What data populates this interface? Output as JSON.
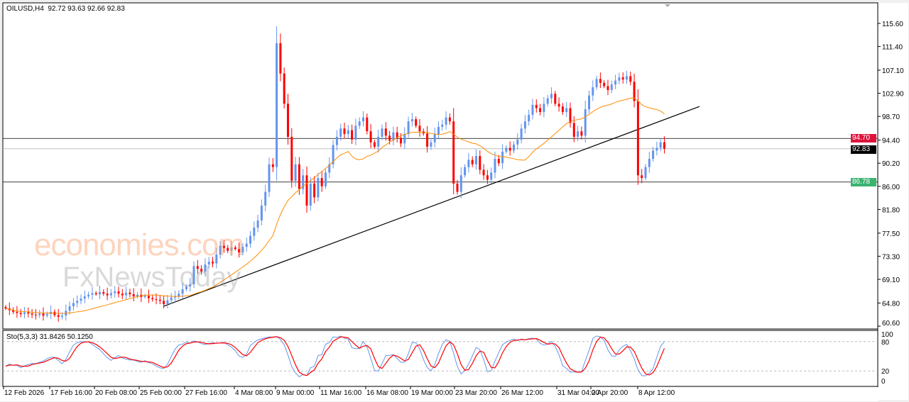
{
  "header": {
    "symbol": "OILUSD,H4",
    "ohlc": "92.72 93.63 92.66 92.83"
  },
  "indicator": {
    "label": "Sto(5,3,3) 31.8426 50.1250",
    "levels": [
      "100",
      "80",
      "20",
      "0"
    ]
  },
  "watermark": {
    "line1": "economies.com",
    "line2": "FxNewsToday"
  },
  "price_tags": {
    "resistance": {
      "value": "94.70",
      "color": "#DC143C"
    },
    "current": {
      "value": "92.83",
      "color": "#000000"
    },
    "support": {
      "value": "86.78",
      "color": "#3CB371"
    }
  },
  "colors": {
    "bull": "#6495ED",
    "bear": "#FF0000",
    "ma": "#FF8C00",
    "stoch_main": "#6495ED",
    "stoch_signal": "#FF0000"
  },
  "chart_data": {
    "type": "candlestick",
    "symbol": "OILUSD",
    "timeframe": "H4",
    "ylim": [
      60.6,
      117.6
    ],
    "y_ticks": [
      "115.60",
      "111.40",
      "107.10",
      "102.90",
      "98.70",
      "94.40",
      "90.20",
      "86.00",
      "81.80",
      "77.50",
      "73.30",
      "69.10",
      "64.80",
      "60.60"
    ],
    "x_ticks": [
      "12 Feb 2026",
      "17 Feb 16:00",
      "20 Feb 08:00",
      "25 Feb 00:00",
      "27 Feb 16:00",
      "4 Mar 08:00",
      "9 Mar 00:00",
      "11 Mar 16:00",
      "16 Mar 08:00",
      "19 Mar 00:00",
      "23 Mar 20:00",
      "26 Mar 12:00",
      "31 Mar 04:00",
      "2 Apr 20:00",
      "8 Apr 12:00"
    ],
    "close": [
      63.8,
      63.5,
      63.2,
      63.0,
      62.8,
      63.1,
      62.9,
      62.7,
      62.6,
      62.9,
      62.5,
      62.8,
      63.2,
      62.6,
      62.3,
      62.5,
      63.4,
      64.2,
      64.8,
      65.2,
      65.6,
      66.0,
      66.3,
      66.6,
      66.4,
      66.8,
      66.5,
      66.2,
      66.6,
      66.9,
      66.5,
      66.2,
      66.7,
      66.4,
      66.0,
      66.3,
      65.9,
      66.1,
      65.7,
      65.5,
      65.4,
      65.2,
      64.6,
      65.3,
      65.8,
      66.0,
      66.5,
      67.3,
      67.8,
      68.2,
      71.5,
      71.0,
      70.5,
      71.8,
      72.3,
      72.0,
      73.6,
      75.2,
      74.8,
      74.3,
      74.9,
      74.6,
      74.0,
      75.0,
      75.6,
      77.0,
      78.5,
      79.8,
      82.5,
      85.0,
      90.0,
      89.5,
      112.0,
      106.5,
      101.0,
      95.0,
      87.0,
      90.0,
      85.5,
      88.0,
      82.5,
      86.5,
      84.0,
      87.5,
      86.0,
      88.5,
      90.0,
      93.5,
      95.0,
      96.5,
      95.5,
      96.2,
      94.5,
      97.0,
      97.8,
      98.5,
      96.0,
      94.0,
      93.2,
      95.0,
      96.5,
      95.2,
      94.3,
      95.8,
      94.8,
      93.8,
      95.5,
      97.8,
      98.2,
      97.0,
      96.0,
      95.6,
      93.2,
      94.0,
      95.5,
      96.8,
      97.2,
      98.5,
      97.8,
      86.5,
      85.0,
      88.0,
      89.5,
      90.8,
      90.0,
      91.5,
      89.0,
      88.0,
      87.2,
      88.5,
      91.0,
      90.2,
      92.3,
      93.0,
      92.5,
      93.6,
      94.5,
      96.5,
      97.8,
      99.0,
      100.8,
      100.2,
      99.5,
      101.0,
      102.0,
      102.8,
      101.0,
      100.5,
      99.5,
      100.2,
      97.5,
      95.0,
      96.0,
      95.2,
      100.0,
      102.5,
      104.0,
      105.5,
      104.8,
      104.2,
      103.5,
      104.5,
      105.2,
      105.8,
      105.4,
      106.0,
      105.0,
      101.5,
      88.0,
      87.5,
      89.5,
      91.0,
      92.5,
      93.0,
      94.0,
      92.83
    ],
    "moving_average": "orange line",
    "horizontal_lines": [
      94.7,
      92.83,
      86.78
    ],
    "trendline": {
      "from": 64.2,
      "to": 100.5
    },
    "stochastic": {
      "k": 31.8426,
      "d": 50.125,
      "params": "5,3,3",
      "levels": [
        20,
        80
      ]
    }
  }
}
